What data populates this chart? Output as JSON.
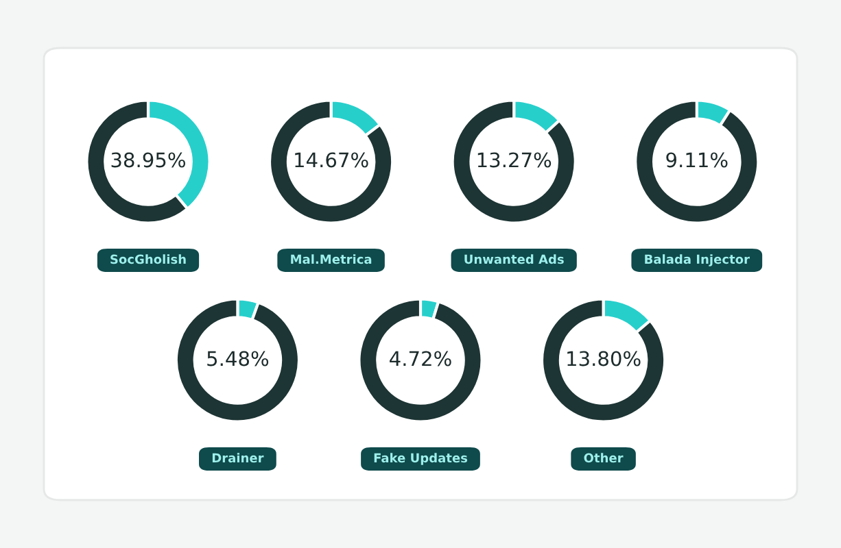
{
  "chart_data": [
    {
      "type": "donut",
      "title": "SocGholish",
      "categories": [
        null,
        null
      ],
      "values": [
        38.95,
        61.05
      ],
      "colors": [
        "#27cfcb",
        "#1d3534"
      ],
      "value_labels": [
        "38.95%",
        null
      ]
    },
    {
      "type": "donut",
      "title": "Mal.Metrica",
      "categories": [
        null,
        null
      ],
      "values": [
        14.67,
        85.33
      ],
      "colors": [
        "#27cfcb",
        "#1d3534"
      ],
      "value_labels": [
        "14.67%",
        null
      ]
    },
    {
      "type": "donut",
      "title": "Unwanted Ads",
      "categories": [
        null,
        null
      ],
      "values": [
        13.27,
        86.73
      ],
      "colors": [
        "#27cfcb",
        "#1d3534"
      ],
      "value_labels": [
        "13.27%",
        null
      ]
    },
    {
      "type": "donut",
      "title": "Balada Injector",
      "categories": [
        null,
        null
      ],
      "values": [
        9.11,
        90.89
      ],
      "colors": [
        "#27cfcb",
        "#1d3534"
      ],
      "value_labels": [
        "9.11%",
        null
      ]
    },
    {
      "type": "donut",
      "title": "Drainer",
      "categories": [
        null,
        null
      ],
      "values": [
        5.48,
        94.52
      ],
      "colors": [
        "#27cfcb",
        "#1d3534"
      ],
      "value_labels": [
        "5.48%",
        null
      ]
    },
    {
      "type": "donut",
      "title": "Fake Updates",
      "categories": [
        null,
        null
      ],
      "values": [
        4.72,
        95.28
      ],
      "colors": [
        "#27cfcb",
        "#1d3534"
      ],
      "value_labels": [
        "4.72%",
        null
      ]
    },
    {
      "type": "donut",
      "title": "Other",
      "categories": [
        null,
        null
      ],
      "values": [
        13.8,
        86.2
      ],
      "colors": [
        "#27cfcb",
        "#1d3534"
      ],
      "value_labels": [
        "13.80%",
        null
      ]
    }
  ]
}
